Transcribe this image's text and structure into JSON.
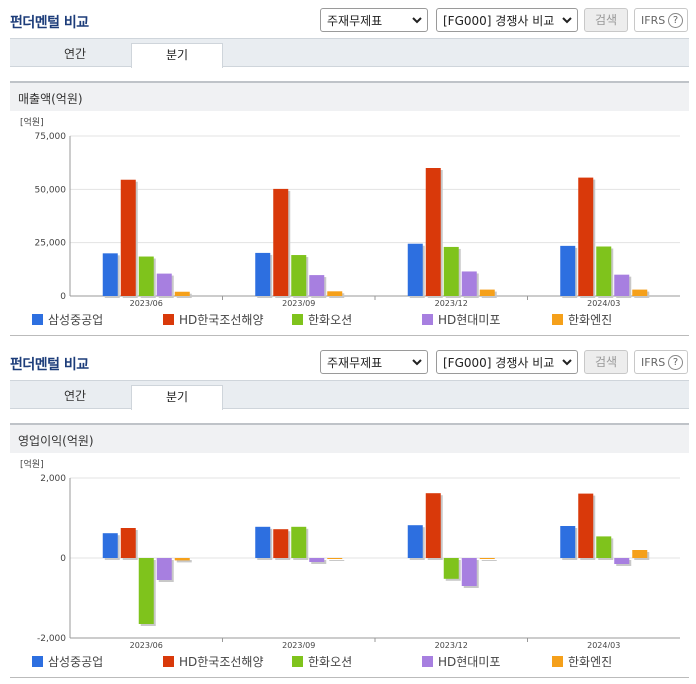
{
  "panels": [
    {
      "title": "펀더멘털 비교",
      "statement_select": "주재무제표",
      "compare_select": "[FG000] 경쟁사 비교",
      "search_label": "검색",
      "ifrs_label": "IFRS",
      "help_label": "?",
      "tabs": [
        "연간",
        "분기"
      ],
      "active_tab": "분기",
      "metric_title": "매출액(억원)",
      "chart_data": {
        "type": "bar",
        "unit_label": "[억원]",
        "categories": [
          "2023/06",
          "2023/09",
          "2023/12",
          "2024/03"
        ],
        "ylim": [
          0,
          75000
        ],
        "yticks": [
          "0",
          "25,000",
          "50,000",
          "75,000"
        ],
        "ytick_values": [
          0,
          25000,
          50000,
          75000
        ],
        "grid": true,
        "legend_position": "bottom",
        "series": [
          {
            "name": "삼성중공업",
            "color": "#2d6fe0",
            "values": [
              20000,
              20200,
              24500,
              23500
            ]
          },
          {
            "name": "HD한국조선해양",
            "color": "#d9390a",
            "values": [
              54500,
              50200,
              60000,
              55500
            ]
          },
          {
            "name": "한화오션",
            "color": "#7fc31c",
            "values": [
              18500,
              19200,
              23000,
              23200
            ]
          },
          {
            "name": "HD현대미포",
            "color": "#a77fe0",
            "values": [
              10500,
              9800,
              11500,
              10000
            ]
          },
          {
            "name": "한화엔진",
            "color": "#f5a01a",
            "values": [
              2000,
              2200,
              3000,
              3000
            ]
          }
        ]
      }
    },
    {
      "title": "펀더멘털 비교",
      "statement_select": "주재무제표",
      "compare_select": "[FG000] 경쟁사 비교",
      "search_label": "검색",
      "ifrs_label": "IFRS",
      "help_label": "?",
      "tabs": [
        "연간",
        "분기"
      ],
      "active_tab": "분기",
      "metric_title": "영업이익(억원)",
      "chart_data": {
        "type": "bar",
        "unit_label": "[억원]",
        "categories": [
          "2023/06",
          "2023/09",
          "2023/12",
          "2024/03"
        ],
        "ylim": [
          -2000,
          2000
        ],
        "yticks": [
          "-2,000",
          "0",
          "2,000"
        ],
        "ytick_values": [
          -2000,
          0,
          2000
        ],
        "grid": true,
        "legend_position": "bottom",
        "series": [
          {
            "name": "삼성중공업",
            "color": "#2d6fe0",
            "values": [
              620,
              780,
              820,
              800
            ]
          },
          {
            "name": "HD한국조선해양",
            "color": "#d9390a",
            "values": [
              750,
              720,
              1620,
              1610
            ]
          },
          {
            "name": "한화오션",
            "color": "#7fc31c",
            "values": [
              -1650,
              780,
              -520,
              540
            ]
          },
          {
            "name": "HD현대미포",
            "color": "#a77fe0",
            "values": [
              -550,
              -100,
              -700,
              -150
            ]
          },
          {
            "name": "한화엔진",
            "color": "#f5a01a",
            "values": [
              -60,
              0,
              0,
              200
            ]
          }
        ]
      }
    }
  ]
}
